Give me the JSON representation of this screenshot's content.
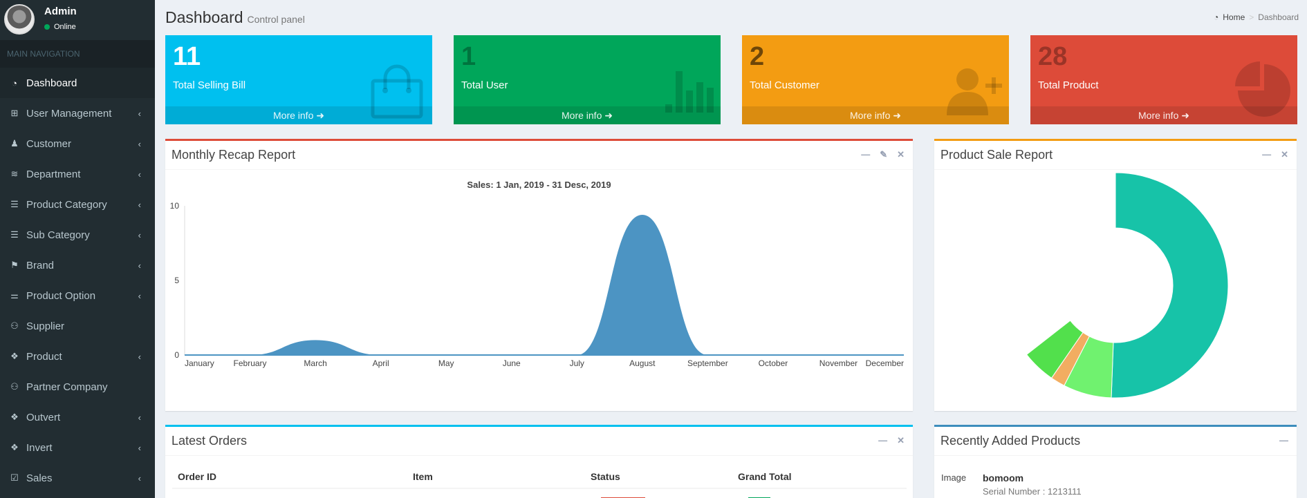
{
  "sidebar": {
    "user": {
      "name": "Admin",
      "status": "Online"
    },
    "nav_header": "MAIN NAVIGATION",
    "items": [
      {
        "label": "Dashboard",
        "icon": "dashboard-icon",
        "active": true
      },
      {
        "label": "User Management",
        "icon": "sitemap-icon"
      },
      {
        "label": "Customer",
        "icon": "user-icon"
      },
      {
        "label": "Department",
        "icon": "database-icon"
      },
      {
        "label": "Product Category",
        "icon": "server-icon"
      },
      {
        "label": "Sub Category",
        "icon": "server-icon"
      },
      {
        "label": "Brand",
        "icon": "flag-icon"
      },
      {
        "label": "Product Option",
        "icon": "sliders-icon"
      },
      {
        "label": "Supplier",
        "icon": "users-icon"
      },
      {
        "label": "Product",
        "icon": "cubes-icon"
      },
      {
        "label": "Partner Company",
        "icon": "users-icon"
      },
      {
        "label": "Outvert",
        "icon": "cubes-icon"
      },
      {
        "label": "Invert",
        "icon": "cubes-icon"
      },
      {
        "label": "Sales",
        "icon": "calendar-check-icon"
      }
    ]
  },
  "header": {
    "title": "Dashboard",
    "subtitle": "Control panel",
    "breadcrumb": {
      "home": "Home",
      "current": "Dashboard"
    }
  },
  "stats": [
    {
      "value": "11",
      "label": "Total Selling Bill",
      "footer": "More info",
      "color": "#00c0ef",
      "icon": "shopping-bag-icon"
    },
    {
      "value": "1",
      "label": "Total User",
      "footer": "More info",
      "color": "#00a65a",
      "icon": "bar-chart-icon"
    },
    {
      "value": "2",
      "label": "Total Customer",
      "footer": "More info",
      "color": "#f39c12",
      "icon": "user-plus-icon"
    },
    {
      "value": "28",
      "label": "Total Product",
      "footer": "More info",
      "color": "#dd4b39",
      "icon": "pie-chart-icon"
    }
  ],
  "monthly_box": {
    "title": "Monthly Recap Report",
    "border_color": "#dd4b39"
  },
  "product_box": {
    "title": "Product Sale Report",
    "border_color": "#f39c12"
  },
  "orders_box": {
    "title": "Latest Orders",
    "border_color": "#00c0ef",
    "columns": [
      "Order ID",
      "Item",
      "Status",
      "Grand Total"
    ]
  },
  "recent_box": {
    "title": "Recently Added Products",
    "border_color": "#3c8dbc",
    "item": {
      "image_label": "Image",
      "name": "bomoom",
      "serial": "Serial Number : 1213111"
    }
  },
  "chart_data": [
    {
      "type": "area",
      "title": "Sales: 1 Jan, 2019 - 31 Desc, 2019",
      "categories": [
        "January",
        "February",
        "March",
        "April",
        "May",
        "June",
        "July",
        "August",
        "September",
        "October",
        "November",
        "December"
      ],
      "values": [
        0,
        0,
        1,
        0,
        0,
        0,
        0,
        9.4,
        0,
        0,
        0,
        0
      ],
      "ylim": [
        0,
        10
      ],
      "yticks": [
        0,
        5,
        10
      ],
      "color": "#4c94c3"
    },
    {
      "type": "pie",
      "donut": true,
      "slices": [
        {
          "value": 73,
          "color": "#17c3a8"
        },
        {
          "value": 10,
          "color": "#70f26f"
        },
        {
          "value": 3,
          "color": "#f2ad61"
        },
        {
          "value": 7,
          "color": "#52e04c"
        }
      ],
      "start_angle_deg": 0,
      "total_degrees": 232
    }
  ]
}
